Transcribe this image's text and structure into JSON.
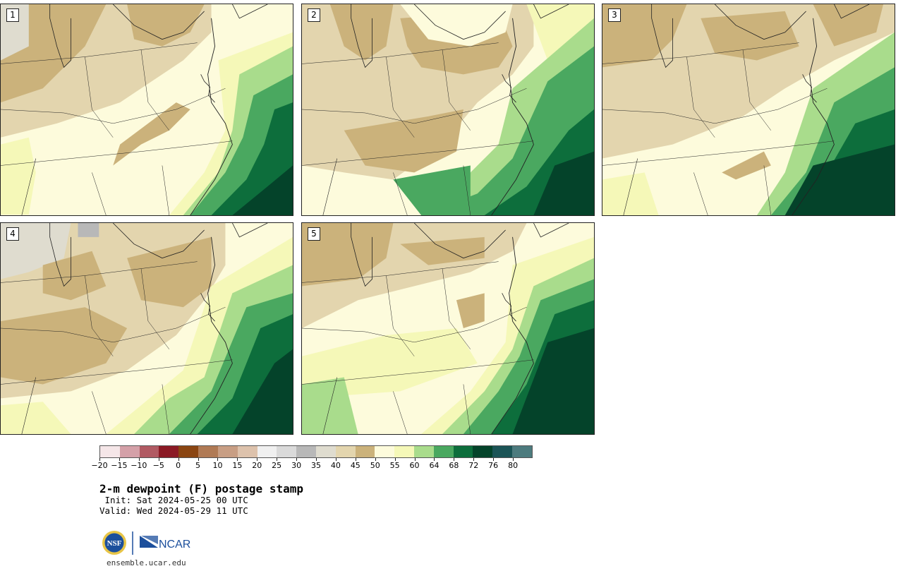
{
  "panels": [
    {
      "label": "1",
      "variant": 1
    },
    {
      "label": "2",
      "variant": 2
    },
    {
      "label": "3",
      "variant": 3
    },
    {
      "label": "4",
      "variant": 4
    },
    {
      "label": "5",
      "variant": 5
    }
  ],
  "colorbar": {
    "colors": [
      "#f5e6e8",
      "#d4a0a8",
      "#b15a63",
      "#8b1a25",
      "#8a4512",
      "#b07a55",
      "#c89e84",
      "#ddc2ac",
      "#f0f0f0",
      "#dadada",
      "#b8b8b8",
      "#dfdccf",
      "#e3d5ae",
      "#cbb27b",
      "#fdfbdc",
      "#f5f8b8",
      "#a9dc8c",
      "#4aa860",
      "#0d6e3c",
      "#04432a",
      "#1b5456",
      "#4d7b7e"
    ],
    "tick_labels": [
      "−20",
      "−15",
      "−10",
      "−5",
      "0",
      "5",
      "10",
      "15",
      "20",
      "25",
      "30",
      "35",
      "40",
      "45",
      "50",
      "55",
      "60",
      "64",
      "68",
      "72",
      "76",
      "80"
    ]
  },
  "title": "2-m dewpoint (F) postage stamp",
  "init": " Init: Sat 2024-05-25 00 UTC",
  "valid": "Valid: Wed 2024-05-29 11 UTC",
  "logos": {
    "nsf": "NSF",
    "ncar": "NCAR"
  },
  "footer": "ensemble.ucar.edu"
}
